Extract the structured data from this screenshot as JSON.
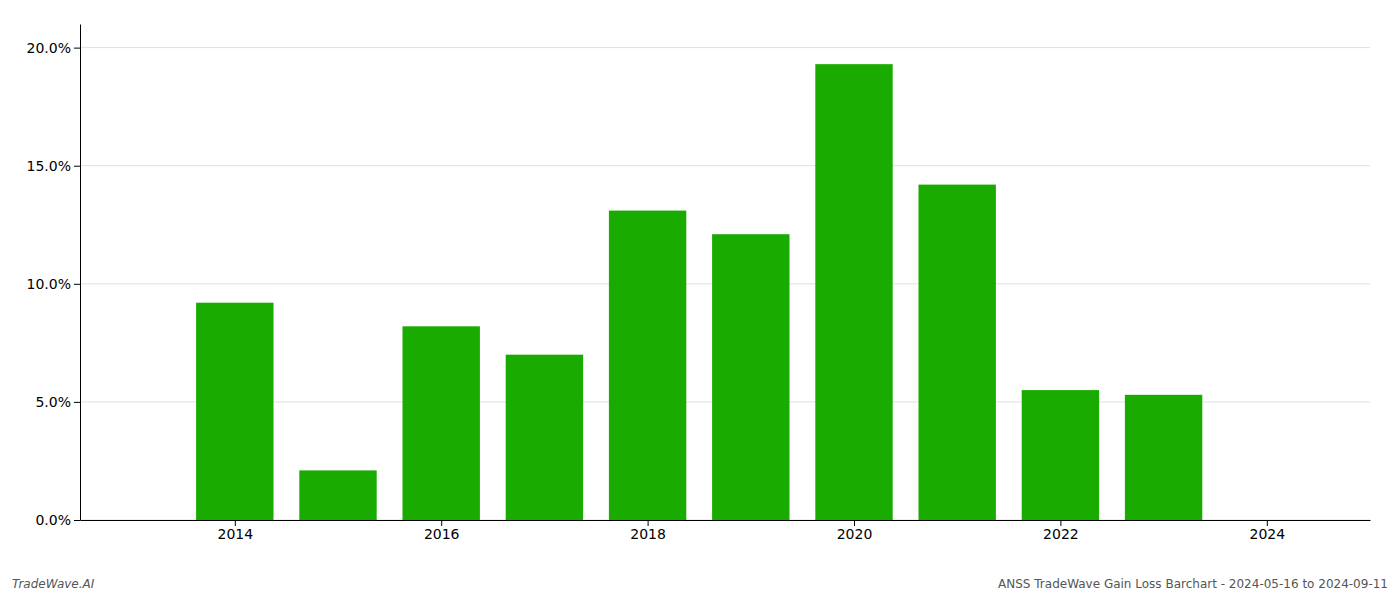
{
  "chart_data": {
    "type": "bar",
    "x": [
      2014,
      2015,
      2016,
      2017,
      2018,
      2019,
      2020,
      2021,
      2022,
      2023
    ],
    "values": [
      0.092,
      0.021,
      0.082,
      0.07,
      0.131,
      0.121,
      0.193,
      0.142,
      0.055,
      0.053
    ],
    "color": "#1aab00",
    "xlim": [
      2012.5,
      2025.0
    ],
    "xticks": [
      2014,
      2016,
      2018,
      2020,
      2022,
      2024
    ],
    "ylim": [
      0,
      0.21
    ],
    "yticks": [
      {
        "value": 0.0,
        "label": "0.0%"
      },
      {
        "value": 0.05,
        "label": "5.0%"
      },
      {
        "value": 0.1,
        "label": "10.0%"
      },
      {
        "value": 0.15,
        "label": "15.0%"
      },
      {
        "value": 0.2,
        "label": "20.0%"
      }
    ],
    "grid": true,
    "annotations": [
      "TradeWave.AI",
      "ANSS TradeWave Gain Loss Barchart - 2024-05-16 to 2024-09-11"
    ]
  }
}
